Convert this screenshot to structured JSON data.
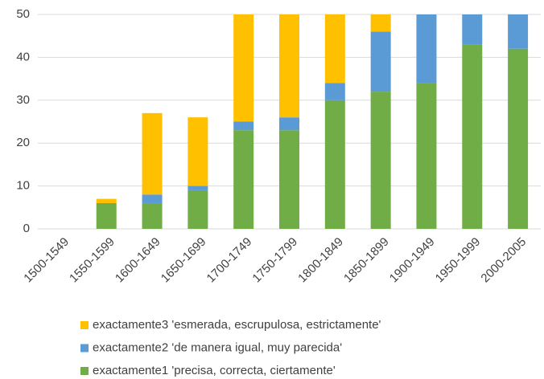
{
  "chart_data": {
    "type": "stacked_bar",
    "categories": [
      "1500-1549",
      "1550-1599",
      "1600-1649",
      "1650-1699",
      "1700-1749",
      "1750-1799",
      "1800-1849",
      "1850-1899",
      "1900-1949",
      "1950-1999",
      "2000-2005"
    ],
    "series": [
      {
        "name": "exactamente1 'precisa, correcta, ciertamente'",
        "color": "#70ad47",
        "values": [
          0,
          6,
          6,
          9,
          23,
          23,
          30,
          32,
          34,
          43,
          42
        ]
      },
      {
        "name": "exactamente2 'de manera igual, muy parecida'",
        "color": "#5b9bd5",
        "values": [
          0,
          0,
          2,
          1,
          2,
          3,
          4,
          14,
          16,
          7,
          8
        ]
      },
      {
        "name": "exactamente3 'esmerada, escrupulosa, estrictamente'",
        "color": "#ffc000",
        "values": [
          0,
          1,
          19,
          16,
          25,
          24,
          16,
          4,
          0,
          0,
          0
        ]
      }
    ],
    "ylim": [
      0,
      50
    ],
    "yticks": [
      0,
      10,
      20,
      30,
      40,
      50
    ],
    "grid": true,
    "legend": "bottom"
  }
}
